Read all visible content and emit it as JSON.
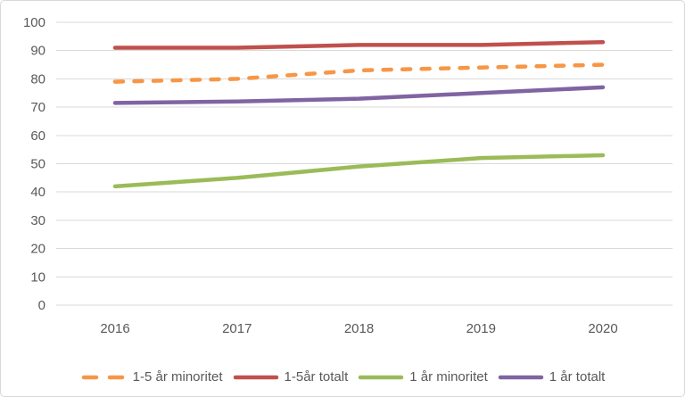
{
  "chart_data": {
    "type": "line",
    "title": "",
    "xlabel": "",
    "ylabel": "",
    "categories": [
      "2016",
      "2017",
      "2018",
      "2019",
      "2020"
    ],
    "yticks": [
      0,
      10,
      20,
      30,
      40,
      50,
      60,
      70,
      80,
      90,
      100
    ],
    "ylim": [
      0,
      100
    ],
    "grid": true,
    "legend_position": "bottom",
    "series": [
      {
        "name": "1-5 år minoritet",
        "values": [
          79,
          80,
          83,
          84,
          85
        ],
        "color": "#F79646",
        "style": "dashed"
      },
      {
        "name": "1-5år totalt",
        "values": [
          91,
          91,
          92,
          92,
          93
        ],
        "color": "#C0504D",
        "style": "solid"
      },
      {
        "name": "1 år minoritet",
        "values": [
          42,
          45,
          49,
          52,
          53
        ],
        "color": "#9BBB59",
        "style": "solid"
      },
      {
        "name": "1 år totalt",
        "values": [
          71.5,
          72,
          73,
          75,
          77
        ],
        "color": "#8064A2",
        "style": "solid"
      }
    ]
  },
  "colors": {
    "gridline": "#D9D9D9",
    "axis_text": "#595959",
    "legend_text": "#595959",
    "frame_border": "#D9D9D9",
    "background": "#FFFFFF"
  }
}
